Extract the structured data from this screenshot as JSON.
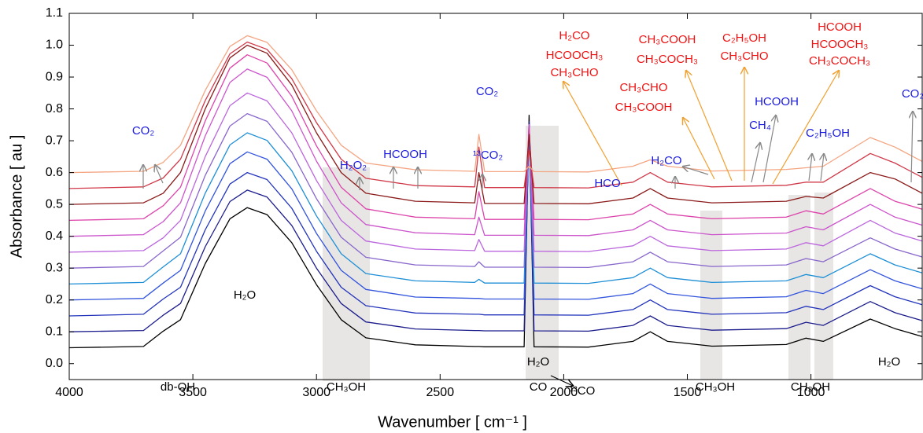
{
  "chart_data": {
    "type": "line",
    "xlabel": "Wavenumber [ cm⁻¹ ]",
    "ylabel": "Absorbance [ au ]",
    "xlim": [
      4000,
      550
    ],
    "ylim": [
      -0.05,
      1.1
    ],
    "xticks": [
      4000,
      3500,
      3000,
      2500,
      2000,
      1500,
      1000
    ],
    "yticks": [
      {
        "value": 0,
        "label": "0.0"
      },
      0.1,
      0.2,
      0.3,
      0.4,
      0.5,
      0.6,
      0.7,
      0.8,
      0.9,
      {
        "value": 1,
        "label": "1.0"
      },
      1.1
    ],
    "x": [
      4000,
      3700,
      3620,
      3550,
      3450,
      3350,
      3280,
      3200,
      3100,
      3000,
      2900,
      2800,
      2600,
      2360,
      2343,
      2320,
      2160,
      2140,
      2120,
      1900,
      1720,
      1650,
      1580,
      1400,
      1100,
      1020,
      950,
      760,
      660,
      550
    ],
    "series": [
      {
        "color": "#000000",
        "values": [
          0.05,
          0.054,
          0.102,
          0.138,
          0.314,
          0.455,
          0.49,
          0.468,
          0.38,
          0.248,
          0.138,
          0.081,
          0.059,
          0.054,
          0.054,
          0.053,
          0.053,
          0.78,
          0.053,
          0.052,
          0.07,
          0.1,
          0.07,
          0.055,
          0.06,
          0.08,
          0.07,
          0.14,
          0.11,
          0.085
        ]
      },
      {
        "color": "#1c1c8c",
        "values": [
          0.1,
          0.104,
          0.152,
          0.189,
          0.367,
          0.509,
          0.545,
          0.523,
          0.434,
          0.3,
          0.189,
          0.131,
          0.109,
          0.104,
          0.104,
          0.103,
          0.103,
          0.76,
          0.103,
          0.102,
          0.12,
          0.15,
          0.12,
          0.105,
          0.11,
          0.13,
          0.12,
          0.195,
          0.16,
          0.135
        ]
      },
      {
        "color": "#2233bb",
        "values": [
          0.15,
          0.155,
          0.203,
          0.24,
          0.42,
          0.564,
          0.6,
          0.578,
          0.488,
          0.353,
          0.24,
          0.182,
          0.159,
          0.155,
          0.155,
          0.153,
          0.153,
          0.75,
          0.153,
          0.152,
          0.17,
          0.2,
          0.17,
          0.155,
          0.16,
          0.18,
          0.17,
          0.245,
          0.21,
          0.185
        ]
      },
      {
        "color": "#3355dd",
        "values": [
          0.2,
          0.205,
          0.253,
          0.293,
          0.479,
          0.628,
          0.665,
          0.642,
          0.549,
          0.409,
          0.293,
          0.233,
          0.209,
          0.205,
          0.205,
          0.203,
          0.203,
          0.75,
          0.203,
          0.202,
          0.22,
          0.25,
          0.22,
          0.205,
          0.21,
          0.23,
          0.22,
          0.295,
          0.26,
          0.235
        ]
      },
      {
        "color": "#1e8fd6",
        "values": [
          0.25,
          0.255,
          0.304,
          0.345,
          0.535,
          0.687,
          0.725,
          0.701,
          0.606,
          0.464,
          0.345,
          0.283,
          0.26,
          0.255,
          0.265,
          0.253,
          0.253,
          0.75,
          0.253,
          0.252,
          0.27,
          0.3,
          0.27,
          0.255,
          0.26,
          0.28,
          0.27,
          0.345,
          0.31,
          0.285
        ]
      },
      {
        "color": "#8866cc",
        "values": [
          0.3,
          0.305,
          0.354,
          0.397,
          0.591,
          0.746,
          0.785,
          0.761,
          0.664,
          0.518,
          0.397,
          0.334,
          0.31,
          0.305,
          0.32,
          0.303,
          0.303,
          0.75,
          0.303,
          0.302,
          0.32,
          0.35,
          0.32,
          0.305,
          0.31,
          0.33,
          0.32,
          0.395,
          0.36,
          0.335
        ]
      },
      {
        "color": "#bb66dd",
        "values": [
          0.35,
          0.355,
          0.395,
          0.45,
          0.65,
          0.81,
          0.85,
          0.825,
          0.725,
          0.575,
          0.45,
          0.385,
          0.36,
          0.355,
          0.39,
          0.353,
          0.353,
          0.75,
          0.353,
          0.352,
          0.37,
          0.4,
          0.37,
          0.355,
          0.36,
          0.38,
          0.37,
          0.45,
          0.41,
          0.385
        ]
      },
      {
        "color": "#cc55cc",
        "values": [
          0.4,
          0.405,
          0.446,
          0.505,
          0.715,
          0.883,
          0.925,
          0.899,
          0.794,
          0.636,
          0.505,
          0.437,
          0.411,
          0.405,
          0.46,
          0.403,
          0.403,
          0.75,
          0.403,
          0.402,
          0.42,
          0.45,
          0.42,
          0.405,
          0.41,
          0.43,
          0.42,
          0.5,
          0.46,
          0.435
        ]
      },
      {
        "color": "#dd44aa",
        "values": [
          0.45,
          0.455,
          0.496,
          0.554,
          0.762,
          0.928,
          0.97,
          0.944,
          0.84,
          0.684,
          0.554,
          0.486,
          0.46,
          0.455,
          0.54,
          0.453,
          0.453,
          0.74,
          0.453,
          0.452,
          0.47,
          0.5,
          0.47,
          0.455,
          0.46,
          0.48,
          0.47,
          0.55,
          0.51,
          0.485
        ]
      },
      {
        "color": "#8b1a1a",
        "values": [
          0.5,
          0.505,
          0.535,
          0.6,
          0.8,
          0.96,
          1.0,
          0.975,
          0.875,
          0.725,
          0.6,
          0.535,
          0.51,
          0.505,
          0.6,
          0.503,
          0.503,
          0.72,
          0.503,
          0.502,
          0.52,
          0.55,
          0.52,
          0.505,
          0.51,
          0.525,
          0.52,
          0.6,
          0.58,
          0.535
        ]
      },
      {
        "color": "#d03848",
        "values": [
          0.55,
          0.555,
          0.583,
          0.642,
          0.826,
          0.973,
          1.01,
          0.987,
          0.895,
          0.757,
          0.642,
          0.582,
          0.559,
          0.555,
          0.68,
          0.553,
          0.553,
          0.67,
          0.553,
          0.552,
          0.57,
          0.6,
          0.57,
          0.555,
          0.56,
          0.57,
          0.57,
          0.66,
          0.63,
          0.585
        ]
      },
      {
        "color": "#f4a582",
        "values": [
          0.6,
          0.604,
          0.632,
          0.686,
          0.858,
          0.996,
          1.03,
          1.009,
          0.923,
          0.794,
          0.686,
          0.63,
          0.609,
          0.604,
          0.72,
          0.603,
          0.603,
          0.62,
          0.603,
          0.602,
          0.62,
          0.64,
          0.62,
          0.605,
          0.61,
          0.615,
          0.62,
          0.71,
          0.68,
          0.635
        ]
      }
    ],
    "annotations": [
      {
        "text": "CO₂",
        "color": "#1a1adf"
      },
      {
        "text": "H₂O₂",
        "color": "#1a1adf"
      },
      {
        "text": "HCOOH",
        "color": "#1a1adf"
      },
      {
        "text": "CO₂",
        "color": "#1a1adf"
      },
      {
        "text": "¹³CO₂",
        "color": "#1a1adf"
      },
      {
        "text": "HCO",
        "color": "#1a1adf"
      },
      {
        "text": "H₂CO",
        "color": "#1a1adf"
      },
      {
        "text": "CH₄",
        "color": "#1a1adf"
      },
      {
        "text": "HCOOH",
        "color": "#1a1adf"
      },
      {
        "text": "C₂H₅OH",
        "color": "#1a1adf"
      },
      {
        "text": "CO₂",
        "color": "#1a1adf"
      },
      {
        "text": "H₂CO",
        "color": "#ee1111"
      },
      {
        "text": "HCOOCH₃",
        "color": "#ee1111"
      },
      {
        "text": "CH₃CHO",
        "color": "#ee1111"
      },
      {
        "text": "CH₃COOH",
        "color": "#ee1111"
      },
      {
        "text": "CH₃COCH₃",
        "color": "#ee1111"
      },
      {
        "text": "CH₃CHO",
        "color": "#ee1111"
      },
      {
        "text": "CH₃COOH",
        "color": "#ee1111"
      },
      {
        "text": "C₂H₅OH",
        "color": "#ee1111"
      },
      {
        "text": "CH₃CHO",
        "color": "#ee1111"
      },
      {
        "text": "HCOOH",
        "color": "#ee1111"
      },
      {
        "text": "HCOOCH₃",
        "color": "#ee1111"
      },
      {
        "text": "CH₃COCH₃",
        "color": "#ee1111"
      },
      {
        "text": "db-OH",
        "color": "#000000"
      },
      {
        "text": "H₂O",
        "color": "#000000"
      },
      {
        "text": "CH₃OH",
        "color": "#000000"
      },
      {
        "text": "CO",
        "color": "#000000"
      },
      {
        "text": "¹³CO",
        "color": "#000000"
      },
      {
        "text": "H₂O",
        "color": "#000000"
      },
      {
        "text": "CH₃OH",
        "color": "#000000"
      },
      {
        "text": "CH₃OH",
        "color": "#000000"
      },
      {
        "text": "H₂O",
        "color": "#000000"
      }
    ]
  }
}
